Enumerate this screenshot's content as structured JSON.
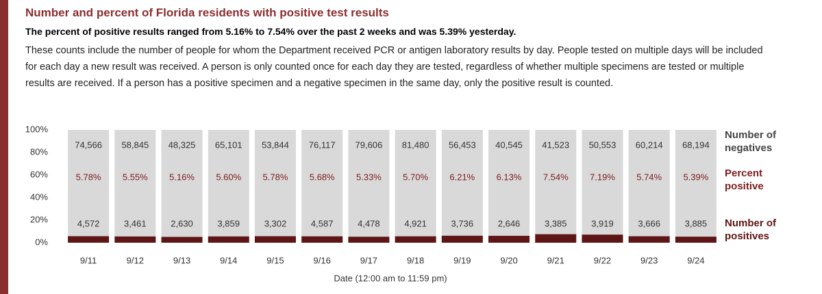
{
  "chart_data": {
    "type": "bar",
    "stacked": "percent",
    "title": "Number and percent of Florida residents with positive test results",
    "subtitle": "The percent of positive results ranged from 5.16% to 7.54% over the past 2 weeks and was 5.39% yesterday.",
    "description": "These counts include the number of people for whom the Department received PCR or antigen laboratory results by day. People tested on multiple days will be included for each day a new result was received. A person is only counted once for each day they are tested, regardless of whether multiple specimens are tested or multiple results are received. If a person has a positive specimen and a negative specimen in the same day, only the positive result is counted.",
    "xlabel": "Date (12:00 am to 11:59 pm)",
    "categories": [
      "9/11",
      "9/12",
      "9/13",
      "9/14",
      "9/15",
      "9/16",
      "9/17",
      "9/18",
      "9/19",
      "9/20",
      "9/21",
      "9/22",
      "9/23",
      "9/24"
    ],
    "ylim": [
      0,
      100
    ],
    "yticks": [
      {
        "value": 0,
        "label": "0%"
      },
      {
        "value": 20,
        "label": "20%"
      },
      {
        "value": 40,
        "label": "40%"
      },
      {
        "value": 60,
        "label": "60%"
      },
      {
        "value": 80,
        "label": "80%"
      },
      {
        "value": 100,
        "label": "100%"
      }
    ],
    "series": [
      {
        "name": "Number of negatives",
        "color": "#d9d9d9",
        "values": [
          74566,
          58845,
          48325,
          65101,
          53844,
          76117,
          79606,
          81480,
          56453,
          40545,
          41523,
          50553,
          60214,
          68194
        ],
        "value_labels": [
          "74,566",
          "58,845",
          "48,325",
          "65,101",
          "53,844",
          "76,117",
          "79,606",
          "81,480",
          "56,453",
          "40,545",
          "41,523",
          "50,553",
          "60,214",
          "68,194"
        ]
      },
      {
        "name": "Percent positive",
        "color": "#7b1c1c",
        "values": [
          5.78,
          5.55,
          5.16,
          5.6,
          5.78,
          5.68,
          5.33,
          5.7,
          6.21,
          6.13,
          7.54,
          7.19,
          5.74,
          5.39
        ],
        "value_labels": [
          "5.78%",
          "5.55%",
          "5.16%",
          "5.60%",
          "5.78%",
          "5.68%",
          "5.33%",
          "5.70%",
          "6.21%",
          "6.13%",
          "7.54%",
          "7.19%",
          "5.74%",
          "5.39%"
        ]
      },
      {
        "name": "Number of positives",
        "color": "#5e1515",
        "values": [
          4572,
          3461,
          2630,
          3859,
          3302,
          4587,
          4478,
          4921,
          3736,
          2646,
          3385,
          3919,
          3666,
          3885
        ],
        "value_labels": [
          "4,572",
          "3,461",
          "2,630",
          "3,859",
          "3,302",
          "4,587",
          "4,478",
          "4,921",
          "3,736",
          "2,646",
          "3,385",
          "3,919",
          "3,666",
          "3,885"
        ]
      }
    ]
  }
}
